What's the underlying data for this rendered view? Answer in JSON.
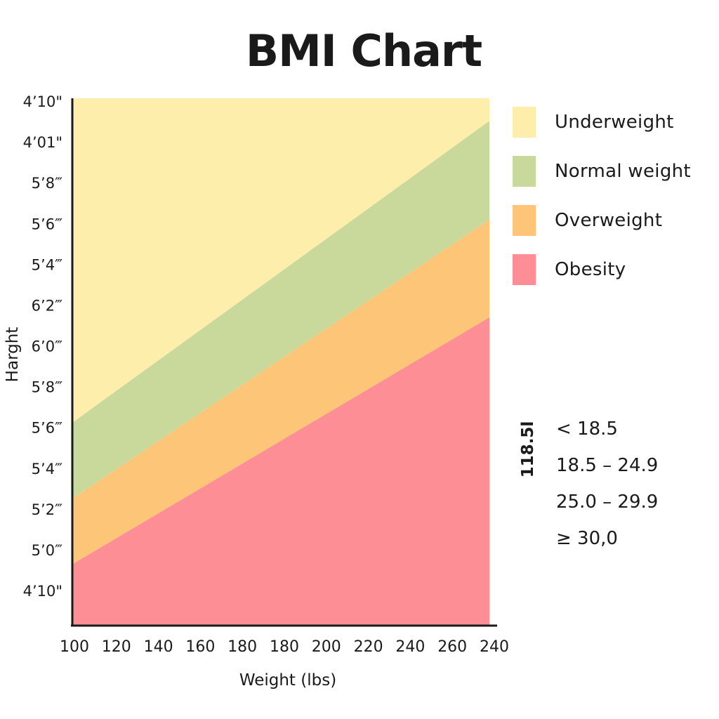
{
  "chart_data": {
    "type": "area",
    "title": "BMI Chart",
    "xlabel": "Weight (lbs)",
    "ylabel": "Harght",
    "x_tick_labels": [
      "100",
      "120",
      "140",
      "160",
      "180",
      "180",
      "200",
      "220",
      "240",
      "260",
      "240"
    ],
    "y_tick_labels": [
      "4’10\"",
      "4’01\"",
      "5’8‴",
      "5’6‴",
      "5’4‴",
      "6’2‴",
      "6’0‴",
      "5’8‴",
      "5’6‴",
      "5’4‴",
      "5’2‴",
      "5’0‴",
      "4’10\""
    ],
    "series": [
      {
        "name": "Underweight",
        "color": "#fdeeab",
        "left_boundary": 0.385,
        "right_boundary": 0.957
      },
      {
        "name": "Normal weight",
        "color": "#c9d99c",
        "left_boundary": 0.241,
        "right_boundary": 0.77
      },
      {
        "name": "Overweight",
        "color": "#fdc578",
        "left_boundary": 0.116,
        "right_boundary": 0.584
      },
      {
        "name": "Obesity",
        "color": "#fe8e95",
        "left_boundary": 0.0,
        "right_boundary": 0.0
      }
    ],
    "legend_position": "right",
    "bmi_ranges_title": "118.5l",
    "bmi_ranges": [
      "< 18.5",
      "18.5  –  24.9",
      "25.0  –  29.9",
      "≥ 30,0"
    ],
    "grid": false
  }
}
